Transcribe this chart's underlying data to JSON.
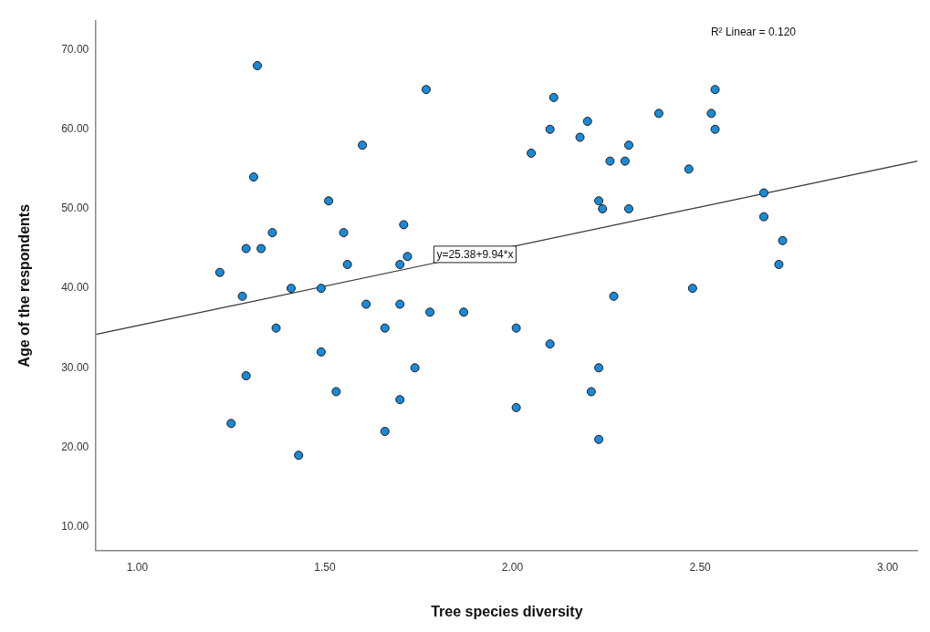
{
  "chart_data": {
    "type": "scatter",
    "xlabel": "Tree species diversity",
    "ylabel": "Age of the respondents",
    "xlim": [
      0.89,
      3.08
    ],
    "ylim": [
      7.05,
      73.6
    ],
    "xticks": [
      {
        "value": 1,
        "label": "1.00"
      },
      {
        "value": 1.5,
        "label": "1.50"
      },
      {
        "value": 2,
        "label": "2.00"
      },
      {
        "value": 2.5,
        "label": "2.50"
      },
      {
        "value": 3,
        "label": "3.00"
      }
    ],
    "yticks": [
      {
        "value": 10,
        "label": "10.00"
      },
      {
        "value": 20,
        "label": "20.00"
      },
      {
        "value": 30,
        "label": "30.00"
      },
      {
        "value": 40,
        "label": "40.00"
      },
      {
        "value": 50,
        "label": "50.00"
      },
      {
        "value": 60,
        "label": "60.00"
      },
      {
        "value": 70,
        "label": "70.00"
      }
    ],
    "grid": false,
    "legend": false,
    "marker": "circle",
    "annotations": [
      "R² Linear = 0.120",
      {
        "text": "y=25.38+9.94*x",
        "x": 1.9,
        "y": 44.27
      }
    ],
    "series": [
      {
        "type": "scatter",
        "color": "#1a8ad8",
        "x": [
          1.32,
          1.31,
          1.22,
          1.29,
          1.33,
          1.36,
          1.28,
          1.41,
          1.49,
          1.51,
          1.55,
          1.56,
          1.6,
          1.77,
          1.71,
          1.72,
          1.7,
          1.61,
          1.7,
          1.78,
          1.87,
          1.37,
          1.66,
          1.49,
          1.74,
          1.29,
          1.53,
          1.7,
          1.25,
          1.66,
          1.43,
          2.11,
          2.1,
          2.2,
          2.18,
          2.05,
          2.31,
          2.26,
          2.3,
          2.39,
          2.54,
          2.53,
          2.54,
          2.47,
          2.23,
          2.24,
          2.31,
          2.67,
          2.67,
          2.72,
          2.71,
          2.48,
          2.27,
          2.01,
          2.1,
          2.23,
          2.21,
          2.01,
          2.23
        ],
        "values": [
          68,
          54,
          42,
          45,
          45,
          47,
          39,
          40,
          40,
          51,
          47,
          43,
          58,
          65,
          48,
          44,
          43,
          38,
          38,
          37,
          37,
          35,
          35,
          32,
          30,
          29,
          27,
          26,
          23,
          22,
          19,
          64,
          60,
          61,
          59,
          57,
          58,
          56,
          56,
          62,
          65,
          62,
          60,
          55,
          51,
          50,
          50,
          52,
          49,
          46,
          43,
          40,
          39,
          35,
          33,
          30,
          27,
          25,
          21
        ]
      },
      {
        "type": "line",
        "color": "#333333",
        "marker": "none",
        "x": [
          0.89,
          3.08
        ],
        "values": [
          34.2,
          56.0
        ]
      }
    ]
  }
}
